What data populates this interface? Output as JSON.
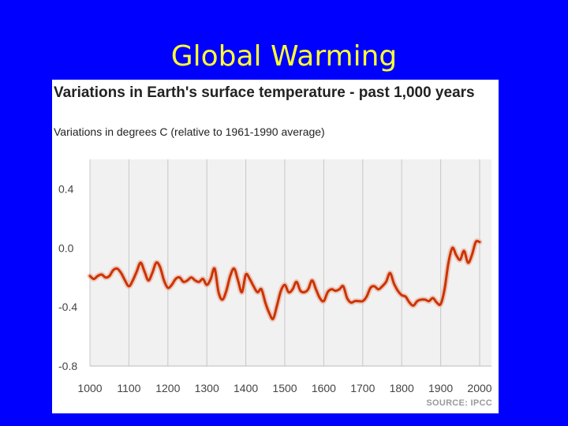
{
  "slide": {
    "title": "Global Warming"
  },
  "chart_data": {
    "type": "line",
    "title": "Variations in Earth's surface temperature - past 1,000 years",
    "subtitle": "Variations in degrees C (relative to 1961-1990 average)",
    "source": "SOURCE: IPCC",
    "xlim": [
      1000,
      2000
    ],
    "ylim": [
      -0.8,
      0.6
    ],
    "x_ticks": [
      1000,
      1100,
      1200,
      1300,
      1400,
      1500,
      1600,
      1700,
      1800,
      1900,
      2000
    ],
    "x_tick_labels": [
      "1000",
      "1100",
      "1200",
      "1300",
      "1400",
      "1500",
      "1600",
      "1700",
      "1800",
      "1900",
      "2000"
    ],
    "y_ticks": [
      0.4,
      0.0,
      -0.4,
      -0.8
    ],
    "y_tick_labels": [
      "0.4",
      "0.0",
      "-0.4",
      "-0.8"
    ],
    "grid": {
      "vertical": true,
      "horizontal": false
    },
    "line_color": "#cc3300",
    "series": [
      {
        "x": [
          1000,
          1010,
          1020,
          1030,
          1040,
          1050,
          1060,
          1070,
          1080,
          1090,
          1100,
          1110,
          1120,
          1130,
          1140,
          1150,
          1160,
          1170,
          1180,
          1190,
          1200,
          1210,
          1220,
          1230,
          1240,
          1250,
          1260,
          1270,
          1280,
          1290,
          1300,
          1310,
          1320,
          1330,
          1340,
          1350,
          1360,
          1370,
          1380,
          1390,
          1400,
          1410,
          1420,
          1430,
          1440,
          1450,
          1460,
          1470,
          1480,
          1490,
          1500,
          1510,
          1520,
          1530,
          1540,
          1550,
          1560,
          1570,
          1580,
          1590,
          1600,
          1610,
          1620,
          1630,
          1640,
          1650,
          1660,
          1670,
          1680,
          1690,
          1700,
          1710,
          1720,
          1730,
          1740,
          1750,
          1760,
          1770,
          1780,
          1790,
          1800,
          1810,
          1820,
          1830,
          1840,
          1850,
          1860,
          1870,
          1880,
          1890,
          1900,
          1910,
          1920,
          1930,
          1940,
          1950,
          1960,
          1970,
          1980,
          1990,
          2000
        ],
        "y": [
          -0.19,
          -0.21,
          -0.19,
          -0.18,
          -0.2,
          -0.19,
          -0.15,
          -0.14,
          -0.17,
          -0.22,
          -0.26,
          -0.22,
          -0.16,
          -0.1,
          -0.16,
          -0.22,
          -0.17,
          -0.1,
          -0.13,
          -0.22,
          -0.27,
          -0.25,
          -0.21,
          -0.2,
          -0.23,
          -0.22,
          -0.2,
          -0.22,
          -0.23,
          -0.21,
          -0.25,
          -0.21,
          -0.14,
          -0.3,
          -0.35,
          -0.29,
          -0.19,
          -0.14,
          -0.22,
          -0.3,
          -0.18,
          -0.21,
          -0.26,
          -0.3,
          -0.28,
          -0.37,
          -0.44,
          -0.48,
          -0.39,
          -0.29,
          -0.25,
          -0.3,
          -0.28,
          -0.23,
          -0.29,
          -0.3,
          -0.28,
          -0.22,
          -0.28,
          -0.34,
          -0.36,
          -0.3,
          -0.28,
          -0.29,
          -0.28,
          -0.26,
          -0.34,
          -0.37,
          -0.36,
          -0.36,
          -0.36,
          -0.33,
          -0.27,
          -0.26,
          -0.28,
          -0.26,
          -0.23,
          -0.17,
          -0.24,
          -0.29,
          -0.32,
          -0.33,
          -0.37,
          -0.39,
          -0.36,
          -0.35,
          -0.35,
          -0.36,
          -0.34,
          -0.37,
          -0.38,
          -0.28,
          -0.1,
          0.0,
          -0.05,
          -0.08,
          -0.02,
          -0.1,
          -0.05,
          0.04,
          0.04
        ]
      }
    ]
  }
}
